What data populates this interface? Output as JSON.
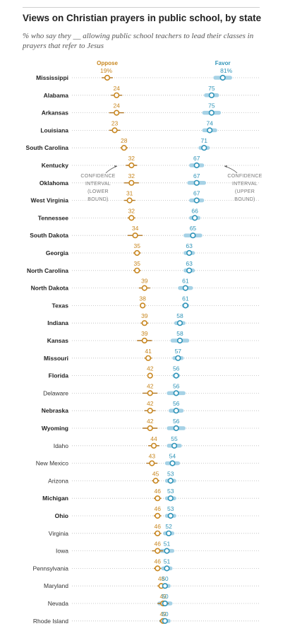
{
  "header": {
    "title": "Views on Christian prayers in public school, by state",
    "subtitle": "% who say they __ allowing public school teachers to lead their classes in prayers that refer to Jesus"
  },
  "colors": {
    "oppose": "#c8861e",
    "oppose_ci": "#b07420",
    "favor": "#2e93b8",
    "favor_ci": "#a6d2e6",
    "dotted_line": "#bbbbbb",
    "text": "#222222",
    "annotation": "#777777"
  },
  "annotations": {
    "ci_lower": [
      "CONFIDENCE",
      "INTERVAL",
      "(LOWER",
      "BOUND)"
    ],
    "ci_upper": [
      "CONFIDENCE",
      "INTERVAL",
      "(UPPER",
      "BOUND)"
    ]
  },
  "chart_data": {
    "type": "dot",
    "series_labels": {
      "oppose": "Oppose",
      "favor": "Favor"
    },
    "first_oppose_suffix": "%",
    "first_favor_suffix": "%",
    "states": [
      {
        "name": "Mississippi",
        "bold": true,
        "oppose": 19,
        "favor": 81,
        "oppose_ci": [
          16,
          22
        ],
        "favor_ci": [
          77,
          85
        ]
      },
      {
        "name": "Alabama",
        "bold": true,
        "oppose": 24,
        "favor": 75,
        "oppose_ci": [
          21,
          27
        ],
        "favor_ci": [
          72,
          78
        ]
      },
      {
        "name": "Arkansas",
        "bold": true,
        "oppose": 24,
        "favor": 75,
        "oppose_ci": [
          20,
          28
        ],
        "favor_ci": [
          71,
          79
        ]
      },
      {
        "name": "Louisiana",
        "bold": true,
        "oppose": 23,
        "favor": 74,
        "oppose_ci": [
          20,
          26
        ],
        "favor_ci": [
          71,
          77
        ]
      },
      {
        "name": "South Carolina",
        "bold": true,
        "oppose": 28,
        "favor": 71,
        "oppose_ci": [
          26,
          30
        ],
        "favor_ci": [
          69,
          73
        ]
      },
      {
        "name": "Kentucky",
        "bold": true,
        "oppose": 32,
        "favor": 67,
        "oppose_ci": [
          29,
          35
        ],
        "favor_ci": [
          64,
          70
        ]
      },
      {
        "name": "Oklahoma",
        "bold": true,
        "oppose": 32,
        "favor": 67,
        "oppose_ci": [
          28,
          36
        ],
        "favor_ci": [
          63,
          71
        ]
      },
      {
        "name": "West Virginia",
        "bold": true,
        "oppose": 31,
        "favor": 67,
        "oppose_ci": [
          28,
          34
        ],
        "favor_ci": [
          64,
          70
        ]
      },
      {
        "name": "Tennessee",
        "bold": true,
        "oppose": 32,
        "favor": 66,
        "oppose_ci": [
          30,
          34
        ],
        "favor_ci": [
          64,
          68
        ]
      },
      {
        "name": "South Dakota",
        "bold": true,
        "oppose": 34,
        "favor": 65,
        "oppose_ci": [
          30,
          38
        ],
        "favor_ci": [
          61,
          69
        ]
      },
      {
        "name": "Georgia",
        "bold": true,
        "oppose": 35,
        "favor": 63,
        "oppose_ci": [
          33,
          37
        ],
        "favor_ci": [
          61,
          65
        ]
      },
      {
        "name": "North Carolina",
        "bold": true,
        "oppose": 35,
        "favor": 63,
        "oppose_ci": [
          33,
          37
        ],
        "favor_ci": [
          61,
          65
        ]
      },
      {
        "name": "North Dakota",
        "bold": true,
        "oppose": 39,
        "favor": 61,
        "oppose_ci": [
          36,
          42
        ],
        "favor_ci": [
          58,
          64
        ]
      },
      {
        "name": "Texas",
        "bold": true,
        "oppose": 38,
        "favor": 61,
        "oppose_ci": [
          37,
          39
        ],
        "favor_ci": [
          60,
          62
        ]
      },
      {
        "name": "Indiana",
        "bold": true,
        "oppose": 39,
        "favor": 58,
        "oppose_ci": [
          37,
          41
        ],
        "favor_ci": [
          56,
          60
        ]
      },
      {
        "name": "Kansas",
        "bold": true,
        "oppose": 39,
        "favor": 58,
        "oppose_ci": [
          35,
          43
        ],
        "favor_ci": [
          54,
          62
        ]
      },
      {
        "name": "Missouri",
        "bold": true,
        "oppose": 41,
        "favor": 57,
        "oppose_ci": [
          39,
          43
        ],
        "favor_ci": [
          55,
          59
        ]
      },
      {
        "name": "Florida",
        "bold": true,
        "oppose": 42,
        "favor": 56,
        "oppose_ci": [
          41,
          43
        ],
        "favor_ci": [
          55,
          57
        ]
      },
      {
        "name": "Delaware",
        "bold": false,
        "oppose": 42,
        "favor": 56,
        "oppose_ci": [
          38,
          46
        ],
        "favor_ci": [
          52,
          60
        ]
      },
      {
        "name": "Nebraska",
        "bold": true,
        "oppose": 42,
        "favor": 56,
        "oppose_ci": [
          39,
          45
        ],
        "favor_ci": [
          53,
          59
        ]
      },
      {
        "name": "Wyoming",
        "bold": true,
        "oppose": 42,
        "favor": 56,
        "oppose_ci": [
          38,
          46
        ],
        "favor_ci": [
          52,
          60
        ]
      },
      {
        "name": "Idaho",
        "bold": false,
        "oppose": 44,
        "favor": 55,
        "oppose_ci": [
          41,
          47
        ],
        "favor_ci": [
          52,
          58
        ]
      },
      {
        "name": "New Mexico",
        "bold": false,
        "oppose": 43,
        "favor": 54,
        "oppose_ci": [
          40,
          46
        ],
        "favor_ci": [
          51,
          57
        ]
      },
      {
        "name": "Arizona",
        "bold": false,
        "oppose": 45,
        "favor": 53,
        "oppose_ci": [
          43,
          47
        ],
        "favor_ci": [
          51,
          55
        ]
      },
      {
        "name": "Michigan",
        "bold": true,
        "oppose": 46,
        "favor": 53,
        "oppose_ci": [
          44,
          48
        ],
        "favor_ci": [
          51,
          55
        ]
      },
      {
        "name": "Ohio",
        "bold": true,
        "oppose": 46,
        "favor": 53,
        "oppose_ci": [
          44,
          48
        ],
        "favor_ci": [
          51,
          55
        ]
      },
      {
        "name": "Virginia",
        "bold": false,
        "oppose": 46,
        "favor": 52,
        "oppose_ci": [
          44,
          48
        ],
        "favor_ci": [
          50,
          54
        ]
      },
      {
        "name": "Iowa",
        "bold": false,
        "oppose": 46,
        "favor": 51,
        "oppose_ci": [
          43,
          49
        ],
        "favor_ci": [
          48,
          54
        ]
      },
      {
        "name": "Pennsylvania",
        "bold": false,
        "oppose": 46,
        "favor": 51,
        "oppose_ci": [
          44,
          48
        ],
        "favor_ci": [
          49,
          53
        ]
      },
      {
        "name": "Maryland",
        "bold": false,
        "oppose": 48,
        "favor": 50,
        "oppose_ci": [
          46,
          50
        ],
        "favor_ci": [
          48,
          52
        ]
      },
      {
        "name": "Nevada",
        "bold": false,
        "oppose": 49,
        "favor": 50,
        "oppose_ci": [
          46,
          52
        ],
        "favor_ci": [
          47,
          53
        ]
      },
      {
        "name": "Rhode Island",
        "bold": false,
        "oppose": 49,
        "favor": 50,
        "oppose_ci": [
          47,
          51
        ],
        "favor_ci": [
          48,
          52
        ]
      }
    ]
  }
}
